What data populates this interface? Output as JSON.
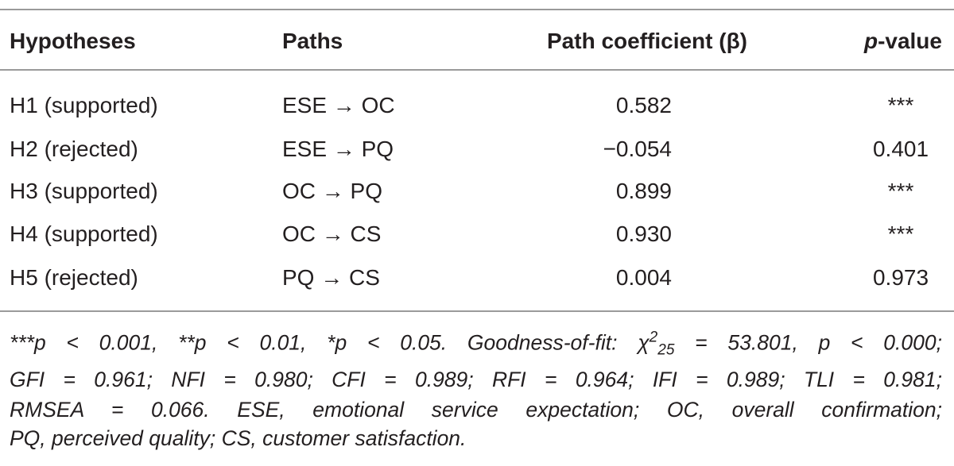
{
  "table": {
    "header": [
      "Hypotheses",
      "Paths",
      "Path coefficient (β)",
      {
        "italic": "p",
        "rest": "-value"
      }
    ],
    "rows": [
      [
        "H1 (supported)",
        "ESE → OC",
        "0.582",
        "***"
      ],
      [
        "H2 (rejected)",
        "ESE → PQ",
        "−0.054",
        "0.401"
      ],
      [
        "H3 (supported)",
        "OC → PQ",
        "0.899",
        "***"
      ],
      [
        "H4 (supported)",
        "OC → CS",
        "0.930",
        "***"
      ],
      [
        "H5 (rejected)",
        "PQ → CS",
        "0.004",
        "0.973"
      ]
    ]
  },
  "footnote": {
    "line1": {
      "before": "***p < 0.001, **p < 0.01, *p < 0.05. Goodness-of-fit: χ",
      "sup": "2",
      "sub": "25",
      "after": " = 53.801, p < 0.000;"
    },
    "line2": "GFI = 0.961; NFI = 0.980; CFI = 0.989; RFI = 0.964; IFI = 0.989; TLI = 0.981;",
    "line3": "RMSEA = 0.066. ESE, emotional service expectation; OC, overall confirmation;",
    "line4": "PQ, perceived quality; CS, customer satisfaction."
  }
}
